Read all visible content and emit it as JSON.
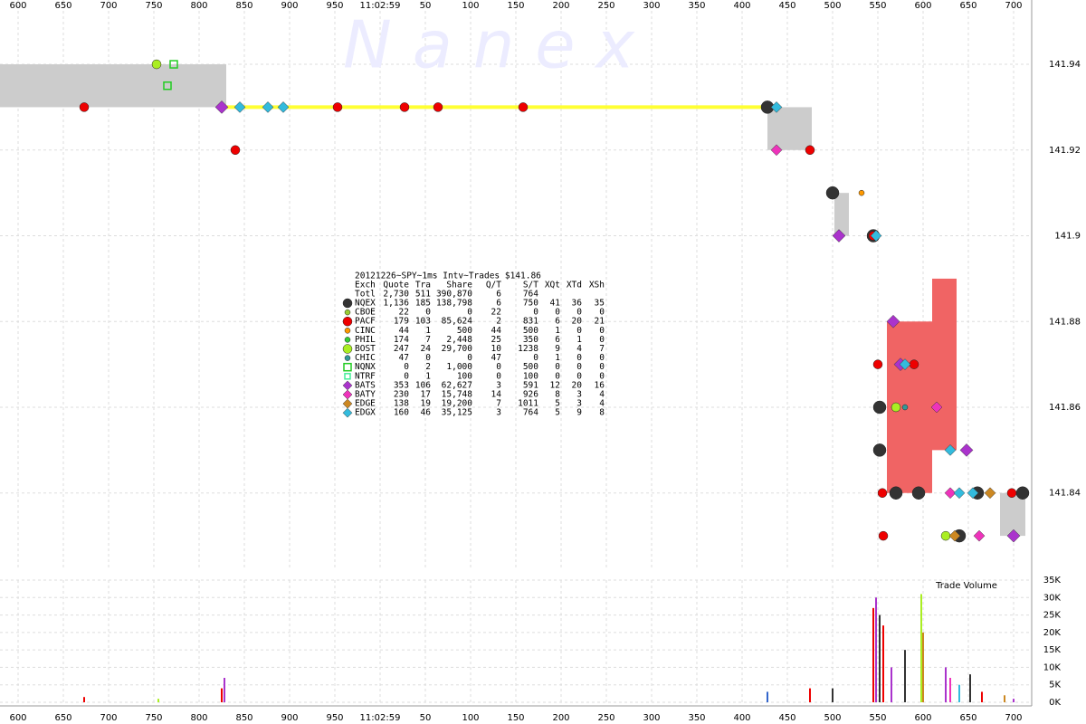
{
  "chart_data": [
    {
      "type": "scatter",
      "watermark": "N a n e x",
      "legend_title": "20121226~SPY~1ms Intv~Trades $141.86",
      "legend_header": [
        "Exch",
        "Quote",
        "Tra",
        "Share",
        "Q/T",
        "S/T",
        "XQt",
        "XTd",
        "XSh"
      ],
      "total": {
        "name": "Totl",
        "stats": [
          "2,730",
          "511",
          "390,870",
          "6",
          "764"
        ]
      },
      "xlim": [
        580,
        1720
      ],
      "ylim": [
        141.822,
        141.955
      ],
      "xticks": [
        600,
        650,
        700,
        750,
        800,
        850,
        900,
        950,
        {
          "value": 1000,
          "label": "11:02:59"
        },
        {
          "value": 1050,
          "label": "50"
        },
        {
          "value": 1100,
          "label": "100"
        },
        {
          "value": 1150,
          "label": "150"
        },
        {
          "value": 1200,
          "label": "200"
        },
        {
          "value": 1250,
          "label": "250"
        },
        {
          "value": 1300,
          "label": "300"
        },
        {
          "value": 1350,
          "label": "350"
        },
        {
          "value": 1400,
          "label": "400"
        },
        {
          "value": 1450,
          "label": "450"
        },
        {
          "value": 1500,
          "label": "500"
        },
        {
          "value": 1550,
          "label": "550"
        },
        {
          "value": 1600,
          "label": "600"
        },
        {
          "value": 1650,
          "label": "650"
        },
        {
          "value": 1700,
          "label": "700"
        }
      ],
      "yticks": [
        141.84,
        141.86,
        141.88,
        141.9,
        141.92,
        141.94
      ],
      "grid": true,
      "spreads": {
        "color": "#cccccc",
        "x0": [
          580,
          1428,
          1502,
          1685
        ],
        "x1": [
          830,
          1477,
          1518,
          1713
        ],
        "low": [
          141.93,
          141.92,
          141.9,
          141.83
        ],
        "high": [
          141.94,
          141.93,
          141.91,
          141.84
        ]
      },
      "crossed": {
        "color": "#f06464",
        "x0": [
          1560,
          1610
        ],
        "x1": [
          1610,
          1637
        ],
        "low": [
          141.84,
          141.85
        ],
        "high": [
          141.88,
          141.89
        ]
      },
      "nbbo": {
        "color": "#ffff33",
        "x": [
          830,
          1428
        ],
        "values": [
          141.93,
          141.93
        ]
      },
      "series": [
        {
          "name": "NQEX",
          "color": "#333333",
          "marker": "circle",
          "size": 7,
          "stats": [
            "1,136",
            "185",
            "138,798",
            "6",
            "750",
            "41",
            "36",
            "35"
          ],
          "x": [
            1428,
            1500,
            1545,
            1552,
            1552,
            1570,
            1595,
            1640,
            1660,
            1710
          ],
          "values": [
            141.93,
            141.91,
            141.9,
            141.86,
            141.85,
            141.84,
            141.84,
            141.83,
            141.84,
            141.84
          ]
        },
        {
          "name": "CBOE",
          "color": "#99cc33",
          "marker": "circle",
          "size": 3,
          "stats": [
            "22",
            "0",
            "0",
            "22",
            "0",
            "0",
            "0",
            "0"
          ],
          "x": [],
          "values": []
        },
        {
          "name": "PACF",
          "color": "#ee0000",
          "marker": "circle",
          "size": 5,
          "stats": [
            "179",
            "103",
            "85,624",
            "2",
            "831",
            "6",
            "20",
            "21"
          ],
          "x": [
            673,
            840,
            953,
            1027,
            1064,
            1158,
            1475,
            1545,
            1550,
            1555,
            1556,
            1590,
            1698
          ],
          "values": [
            141.93,
            141.92,
            141.93,
            141.93,
            141.93,
            141.93,
            141.92,
            141.9,
            141.87,
            141.84,
            141.83,
            141.87,
            141.84
          ]
        },
        {
          "name": "CINC",
          "color": "#ff9900",
          "marker": "circle",
          "size": 3,
          "stats": [
            "44",
            "1",
            "500",
            "44",
            "500",
            "1",
            "0",
            "0"
          ],
          "x": [
            1532
          ],
          "values": [
            141.91
          ]
        },
        {
          "name": "PHIL",
          "color": "#33cc33",
          "marker": "circle",
          "size": 3,
          "stats": [
            "174",
            "7",
            "2,448",
            "25",
            "350",
            "6",
            "1",
            "0"
          ],
          "x": [
            1568
          ],
          "values": [
            141.86
          ]
        },
        {
          "name": "BOST",
          "color": "#aaee22",
          "marker": "circle",
          "size": 5,
          "stats": [
            "247",
            "24",
            "29,700",
            "10",
            "1238",
            "9",
            "4",
            "7"
          ],
          "x": [
            753,
            1625,
            1570
          ],
          "values": [
            141.94,
            141.83,
            141.86
          ]
        },
        {
          "name": "CHIC",
          "color": "#339999",
          "marker": "circle",
          "size": 3,
          "stats": [
            "47",
            "0",
            "0",
            "47",
            "0",
            "1",
            "0",
            "0"
          ],
          "x": [
            1580
          ],
          "values": [
            141.86
          ]
        },
        {
          "name": "NQNX",
          "color": "#22cc22",
          "marker": "square",
          "size": 4,
          "stats": [
            "0",
            "2",
            "1,000",
            "0",
            "500",
            "0",
            "0",
            "0"
          ],
          "x": [
            772,
            765
          ],
          "values": [
            141.94,
            141.935
          ]
        },
        {
          "name": "NTRF",
          "color": "#44ee99",
          "marker": "square",
          "size": 3,
          "stats": [
            "0",
            "1",
            "100",
            "0",
            "100",
            "0",
            "0",
            "0"
          ],
          "x": [],
          "values": []
        },
        {
          "name": "BATS",
          "color": "#aa33cc",
          "marker": "diamond",
          "size": 7,
          "stats": [
            "353",
            "106",
            "62,627",
            "3",
            "591",
            "12",
            "20",
            "16"
          ],
          "x": [
            825,
            1507,
            1567,
            1575,
            1648,
            1700
          ],
          "values": [
            141.93,
            141.9,
            141.88,
            141.87,
            141.85,
            141.83
          ]
        },
        {
          "name": "BATY",
          "color": "#ee33bb",
          "marker": "diamond",
          "size": 6,
          "stats": [
            "230",
            "17",
            "15,748",
            "14",
            "926",
            "8",
            "3",
            "4"
          ],
          "x": [
            1438,
            1615,
            1662,
            1630
          ],
          "values": [
            141.92,
            141.86,
            141.83,
            141.84
          ]
        },
        {
          "name": "EDGE",
          "color": "#cc8822",
          "marker": "diamond",
          "size": 6,
          "stats": [
            "138",
            "19",
            "19,200",
            "7",
            "1011",
            "5",
            "3",
            "4"
          ],
          "x": [
            1674,
            1635
          ],
          "values": [
            141.84,
            141.83
          ]
        },
        {
          "name": "EDGX",
          "color": "#33bbdd",
          "marker": "diamond",
          "size": 6,
          "stats": [
            "160",
            "46",
            "35,125",
            "3",
            "764",
            "5",
            "9",
            "8"
          ],
          "x": [
            845,
            876,
            893,
            1438,
            1548,
            1580,
            1640,
            1630,
            1655
          ],
          "values": [
            141.93,
            141.93,
            141.93,
            141.93,
            141.9,
            141.87,
            141.84,
            141.85,
            141.84
          ]
        }
      ]
    },
    {
      "type": "bar",
      "title": "Trade Volume",
      "xlim": [
        580,
        1720
      ],
      "ylim": [
        0,
        35000
      ],
      "xticks": [
        600,
        650,
        700,
        750,
        800,
        850,
        900,
        950,
        {
          "value": 1000,
          "label": "11:02:59"
        },
        {
          "value": 1050,
          "label": "50"
        },
        {
          "value": 1100,
          "label": "100"
        },
        {
          "value": 1150,
          "label": "150"
        },
        {
          "value": 1200,
          "label": "200"
        },
        {
          "value": 1250,
          "label": "250"
        },
        {
          "value": 1300,
          "label": "300"
        },
        {
          "value": 1350,
          "label": "350"
        },
        {
          "value": 1400,
          "label": "400"
        },
        {
          "value": 1450,
          "label": "450"
        },
        {
          "value": 1500,
          "label": "500"
        },
        {
          "value": 1550,
          "label": "550"
        },
        {
          "value": 1600,
          "label": "600"
        },
        {
          "value": 1650,
          "label": "650"
        },
        {
          "value": 1700,
          "label": "700"
        }
      ],
      "yticks": [
        {
          "value": 0,
          "label": "0K"
        },
        {
          "value": 5000,
          "label": "5K"
        },
        {
          "value": 10000,
          "label": "10K"
        },
        {
          "value": 15000,
          "label": "15K"
        },
        {
          "value": 20000,
          "label": "20K"
        },
        {
          "value": 25000,
          "label": "25K"
        },
        {
          "value": 30000,
          "label": "30K"
        },
        {
          "value": 35000,
          "label": "35K"
        }
      ],
      "grid": true,
      "x": [
        673,
        755,
        825,
        828,
        1428,
        1475,
        1500,
        1545,
        1548,
        1552,
        1556,
        1565,
        1580,
        1598,
        1600,
        1625,
        1630,
        1640,
        1652,
        1665,
        1690,
        1700
      ],
      "values": [
        1500,
        1000,
        4000,
        7000,
        3000,
        4000,
        4000,
        27000,
        30000,
        25000,
        22000,
        10000,
        15000,
        31000,
        20000,
        10000,
        7000,
        5000,
        8000,
        3000,
        2000,
        1000
      ],
      "colors": [
        "#ee0000",
        "#aaee22",
        "#ee0000",
        "#aa33cc",
        "#3366cc",
        "#ee0000",
        "#333333",
        "#ee0000",
        "#aa33cc",
        "#333333",
        "#ee0000",
        "#aa33cc",
        "#333333",
        "#aaee22",
        "#cc8822",
        "#aa33cc",
        "#ee33bb",
        "#33bbdd",
        "#333333",
        "#ee0000",
        "#cc8822",
        "#aa33cc"
      ]
    }
  ]
}
